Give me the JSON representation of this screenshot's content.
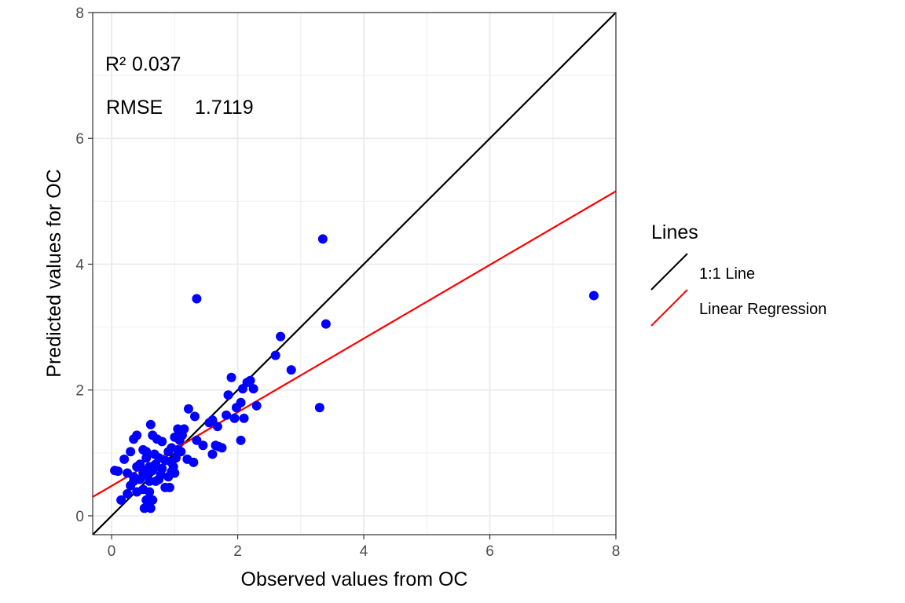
{
  "chart_data": {
    "type": "scatter",
    "xlabel": "Observed values from OC",
    "ylabel": "Predicted values for OC",
    "xlim": [
      -0.3,
      8.0
    ],
    "ylim": [
      -0.3,
      8.0
    ],
    "x_ticks": [
      0,
      2,
      4,
      6,
      8
    ],
    "y_ticks": [
      0,
      2,
      4,
      6,
      8
    ],
    "grid": true,
    "annotations": [
      {
        "label": "R²",
        "value": "0.037"
      },
      {
        "label": "RMSE",
        "value": "1.7119"
      }
    ],
    "legend": {
      "title": "Lines",
      "placement": "right",
      "entries": [
        {
          "name": "1:1 Line",
          "color": "#000000"
        },
        {
          "name": "Linear Regression",
          "color": "#ff0000"
        }
      ]
    },
    "lines": [
      {
        "name": "1:1 Line",
        "color": "#000000",
        "x": [
          -0.3,
          8.0
        ],
        "y": [
          -0.3,
          8.0
        ]
      },
      {
        "name": "Linear Regression",
        "color": "#ff0000",
        "x": [
          -0.3,
          8.0
        ],
        "y": [
          0.3,
          5.16
        ]
      }
    ],
    "series": [
      {
        "color": "#0000ff",
        "points": [
          [
            0.05,
            0.72
          ],
          [
            0.1,
            0.71
          ],
          [
            0.15,
            0.25
          ],
          [
            0.2,
            0.9
          ],
          [
            0.25,
            0.35
          ],
          [
            0.25,
            0.68
          ],
          [
            0.3,
            1.02
          ],
          [
            0.3,
            0.48
          ],
          [
            0.35,
            1.22
          ],
          [
            0.35,
            0.55
          ],
          [
            0.35,
            0.62
          ],
          [
            0.4,
            1.28
          ],
          [
            0.4,
            0.38
          ],
          [
            0.4,
            0.78
          ],
          [
            0.45,
            0.82
          ],
          [
            0.45,
            0.58
          ],
          [
            0.5,
            0.68
          ],
          [
            0.5,
            0.42
          ],
          [
            0.5,
            1.05
          ],
          [
            0.5,
            0.72
          ],
          [
            0.52,
            0.12
          ],
          [
            0.55,
            0.65
          ],
          [
            0.55,
            0.92
          ],
          [
            0.55,
            1.02
          ],
          [
            0.55,
            0.25
          ],
          [
            0.58,
            0.18
          ],
          [
            0.6,
            0.38
          ],
          [
            0.6,
            0.55
          ],
          [
            0.6,
            0.78
          ],
          [
            0.62,
            0.12
          ],
          [
            0.62,
            1.45
          ],
          [
            0.65,
            0.25
          ],
          [
            0.65,
            0.72
          ],
          [
            0.65,
            1.28
          ],
          [
            0.68,
            0.98
          ],
          [
            0.7,
            0.55
          ],
          [
            0.7,
            0.82
          ],
          [
            0.72,
            1.22
          ],
          [
            0.75,
            0.58
          ],
          [
            0.75,
            0.92
          ],
          [
            0.78,
            0.65
          ],
          [
            0.8,
            0.75
          ],
          [
            0.8,
            1.18
          ],
          [
            0.85,
            0.45
          ],
          [
            0.85,
            0.88
          ],
          [
            0.9,
            0.62
          ],
          [
            0.9,
            1.02
          ],
          [
            0.92,
            0.45
          ],
          [
            0.95,
            0.85
          ],
          [
            0.95,
            1.08
          ],
          [
            0.95,
            0.7
          ],
          [
            0.98,
            0.78
          ],
          [
            1.0,
            1.25
          ],
          [
            1.0,
            0.68
          ],
          [
            1.02,
            0.92
          ],
          [
            1.05,
            1.05
          ],
          [
            1.05,
            1.38
          ],
          [
            1.08,
            1.2
          ],
          [
            1.1,
            1.02
          ],
          [
            1.12,
            1.28
          ],
          [
            1.15,
            1.38
          ],
          [
            1.2,
            0.9
          ],
          [
            1.22,
            1.7
          ],
          [
            1.3,
            0.85
          ],
          [
            1.32,
            1.58
          ],
          [
            1.35,
            3.45
          ],
          [
            1.35,
            1.2
          ],
          [
            1.45,
            1.12
          ],
          [
            1.55,
            1.48
          ],
          [
            1.6,
            0.98
          ],
          [
            1.6,
            1.52
          ],
          [
            1.65,
            1.12
          ],
          [
            1.68,
            1.42
          ],
          [
            1.7,
            1.1
          ],
          [
            1.75,
            1.08
          ],
          [
            1.82,
            1.6
          ],
          [
            1.85,
            1.92
          ],
          [
            1.9,
            2.2
          ],
          [
            1.95,
            1.55
          ],
          [
            1.98,
            1.72
          ],
          [
            2.05,
            1.8
          ],
          [
            2.05,
            1.2
          ],
          [
            2.08,
            2.02
          ],
          [
            2.1,
            1.55
          ],
          [
            2.15,
            2.12
          ],
          [
            2.2,
            2.15
          ],
          [
            2.25,
            2.02
          ],
          [
            2.3,
            1.75
          ],
          [
            2.6,
            2.55
          ],
          [
            2.68,
            2.85
          ],
          [
            2.85,
            2.32
          ],
          [
            3.3,
            1.72
          ],
          [
            3.35,
            4.4
          ],
          [
            3.4,
            3.05
          ],
          [
            7.65,
            3.5
          ]
        ]
      }
    ]
  }
}
